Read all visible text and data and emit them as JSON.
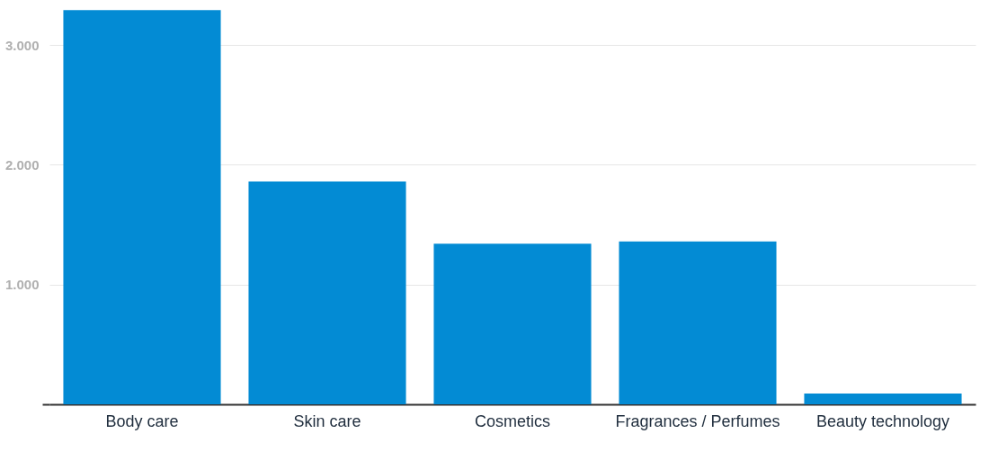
{
  "chart_data": {
    "type": "bar",
    "categories": [
      "Body care",
      "Skin care",
      "Cosmetics",
      "Fragrances / Perfumes",
      "Beauty technology"
    ],
    "values": [
      3290,
      1860,
      1340,
      1360,
      90
    ],
    "color": "#038bd4",
    "ylim": [
      0,
      3300
    ],
    "yticks": [
      {
        "value": 0,
        "label": null
      },
      {
        "value": 1000,
        "label": "1.000"
      },
      {
        "value": 2000,
        "label": "2.000"
      },
      {
        "value": 3000,
        "label": "3.000"
      }
    ],
    "grid": "y"
  }
}
